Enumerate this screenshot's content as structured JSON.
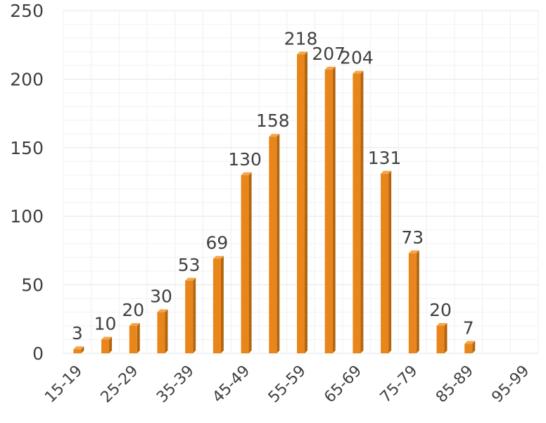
{
  "chart_data": {
    "type": "bar",
    "title": "",
    "xlabel": "",
    "ylabel": "",
    "categories": [
      "15-19",
      "20-24",
      "25-29",
      "30-34",
      "35-39",
      "40-44",
      "45-49",
      "50-54",
      "55-59",
      "60-64",
      "65-69",
      "70-74",
      "75-79",
      "80-84",
      "85-89",
      "90-94",
      "95-99"
    ],
    "category_labels_shown": [
      "15-19",
      "",
      "25-29",
      "",
      "35-39",
      "",
      "45-49",
      "",
      "55-59",
      "",
      "65-69",
      "",
      "75-79",
      "",
      "85-89",
      "",
      "95-99"
    ],
    "values": [
      3,
      10,
      20,
      30,
      53,
      69,
      130,
      158,
      218,
      207,
      204,
      131,
      73,
      20,
      7,
      null,
      null
    ],
    "data_labels": [
      "3",
      "10",
      "20",
      "30",
      "53",
      "69",
      "130",
      "158",
      "218",
      "207",
      "204",
      "131",
      "73",
      "20",
      "7",
      "",
      ""
    ],
    "ylim": [
      0,
      250
    ],
    "yticks": [
      0,
      50,
      100,
      150,
      200,
      250
    ],
    "grid": true,
    "legend": "none",
    "colors": {
      "bar_front": "#e8861c",
      "bar_side": "#b4650d",
      "bar_top": "#f5a54a",
      "grid": "#ececec",
      "text": "#404040"
    }
  }
}
